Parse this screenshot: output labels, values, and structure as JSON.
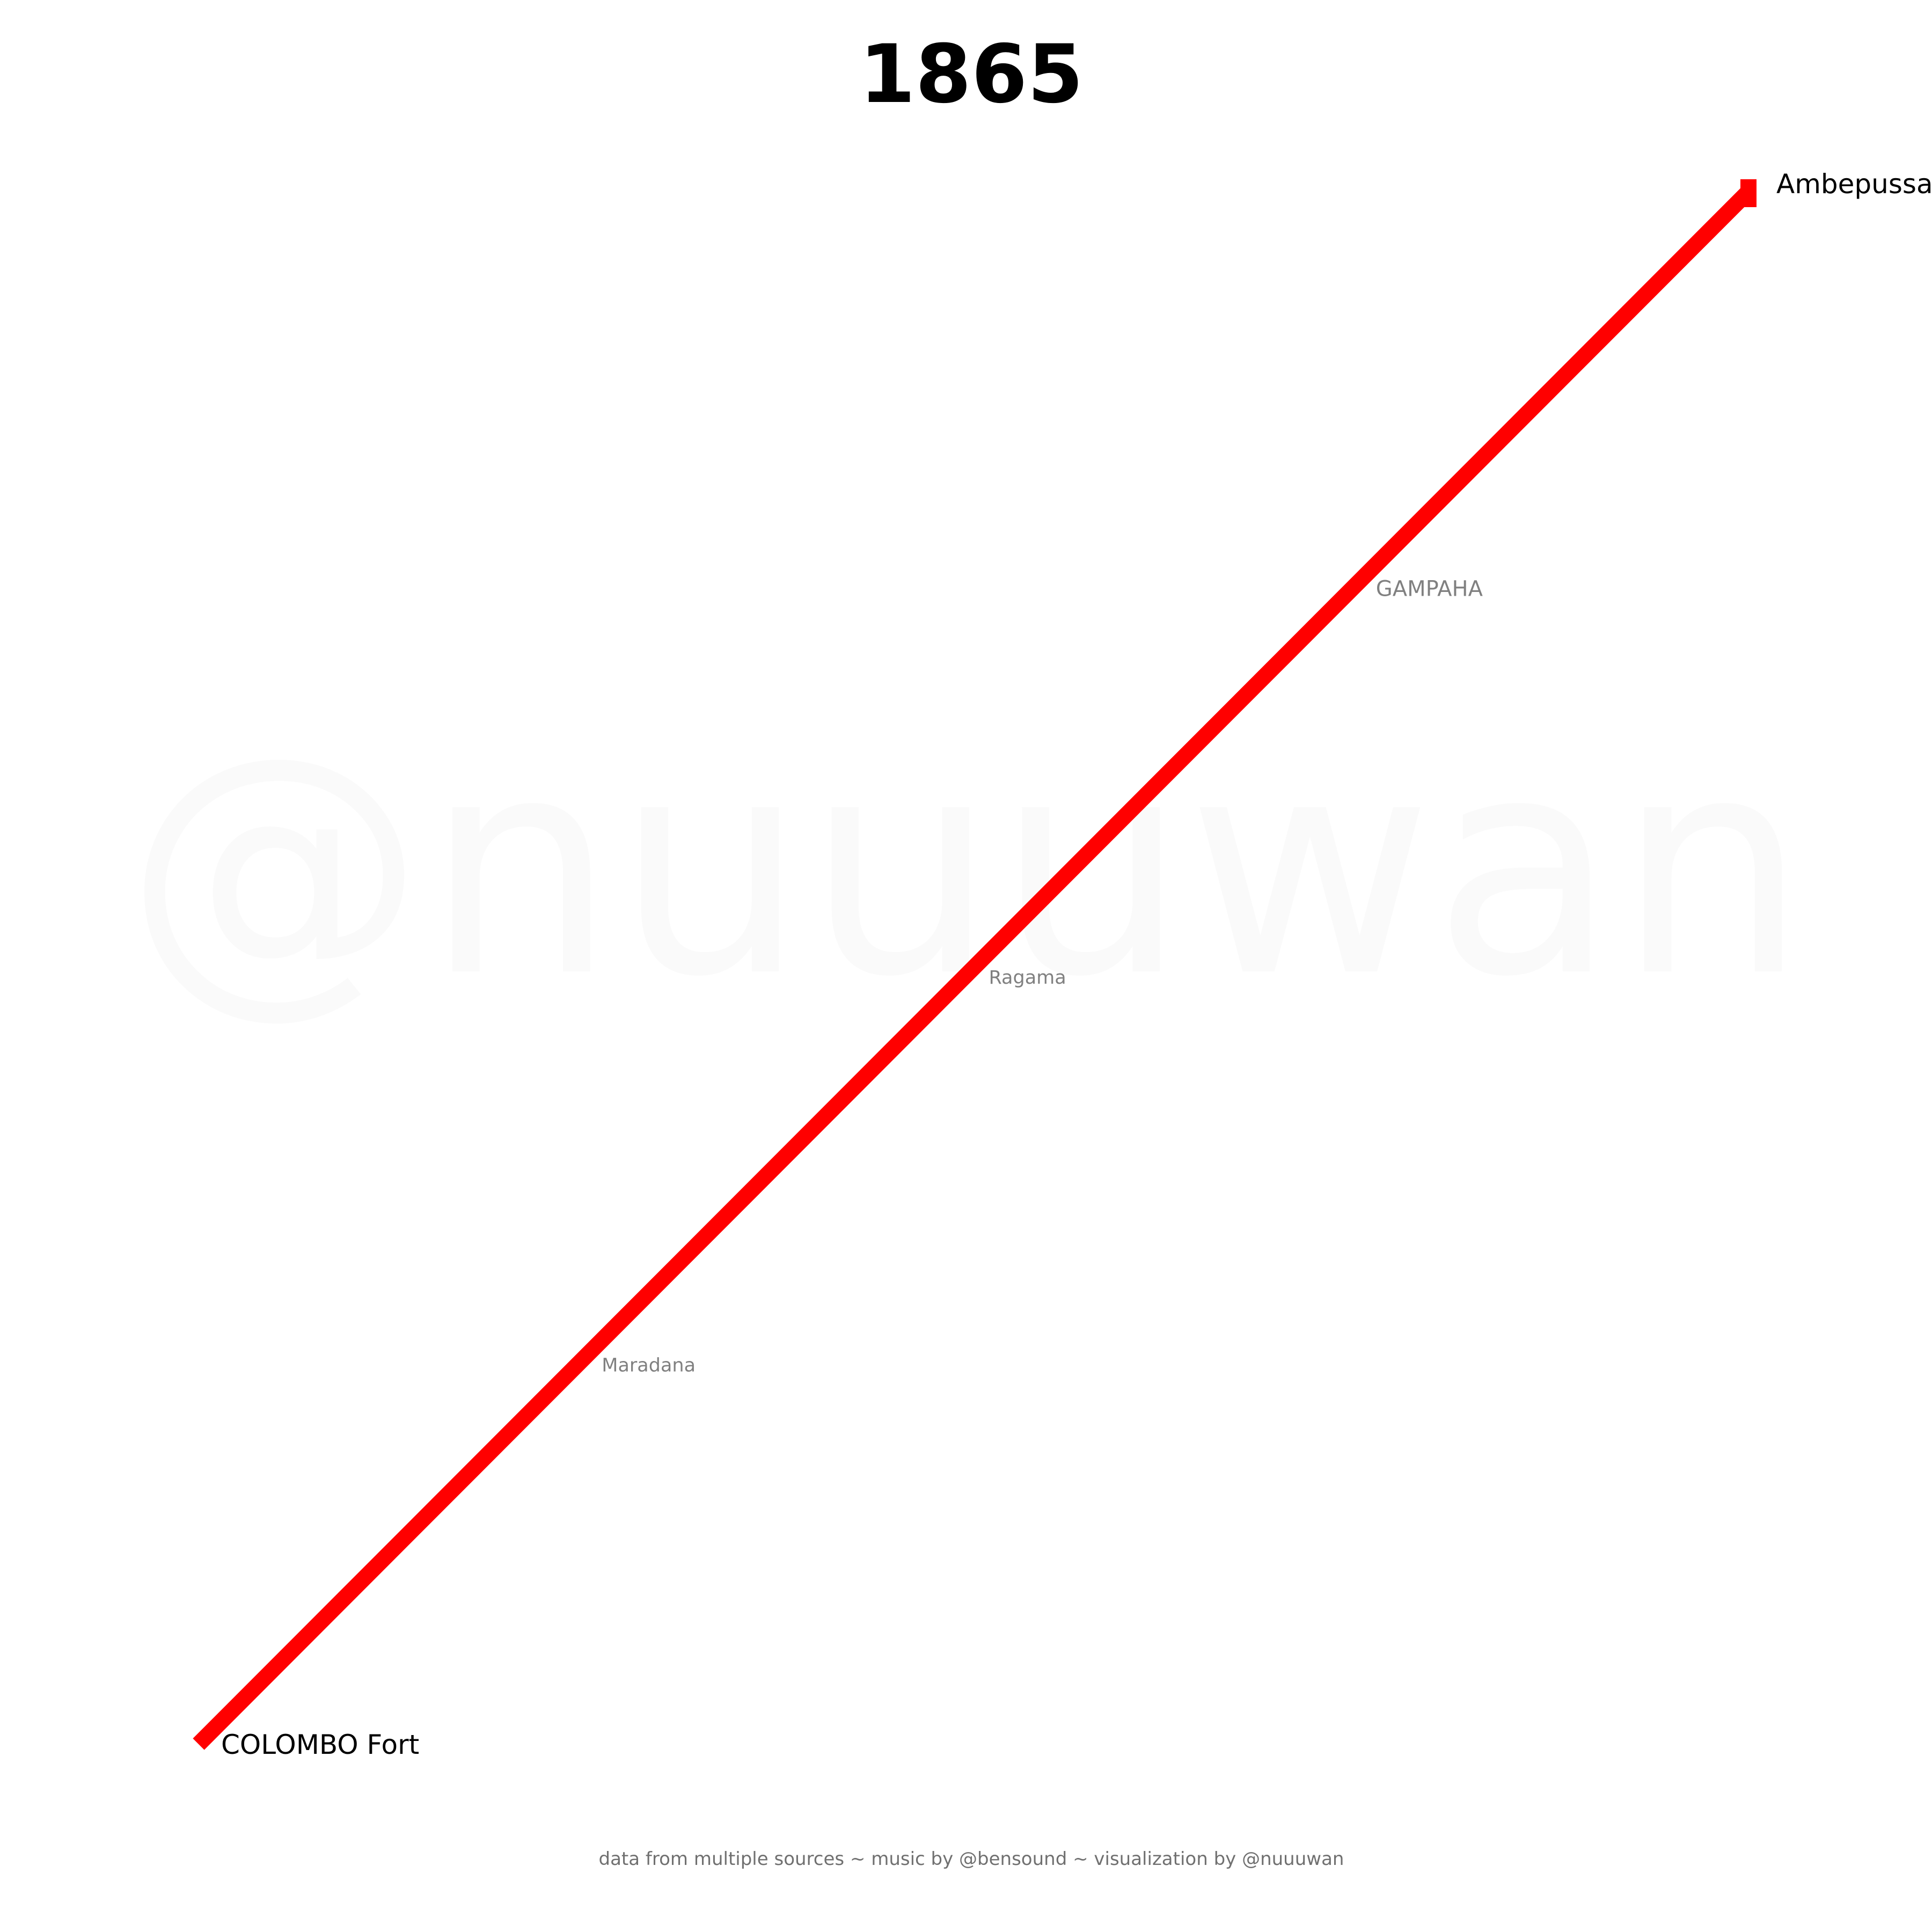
{
  "title": "1865",
  "watermark": "@nuuuwan",
  "credits": "data from multiple sources ~ music by @bensound ~ visualization by @nuuuwan",
  "colors": {
    "line": "#ff0000",
    "terminal_text": "#000000",
    "station_text": "#808080",
    "watermark": "#fafafa",
    "credits": "#707070"
  },
  "railway_line": {
    "stations": [
      {
        "name": "COLOMBO Fort",
        "type": "terminal"
      },
      {
        "name": "Maradana",
        "type": "minor"
      },
      {
        "name": "Ragama",
        "type": "minor"
      },
      {
        "name": "GAMPAHA",
        "type": "major"
      },
      {
        "name": "Ambepussa",
        "type": "terminal"
      }
    ]
  }
}
